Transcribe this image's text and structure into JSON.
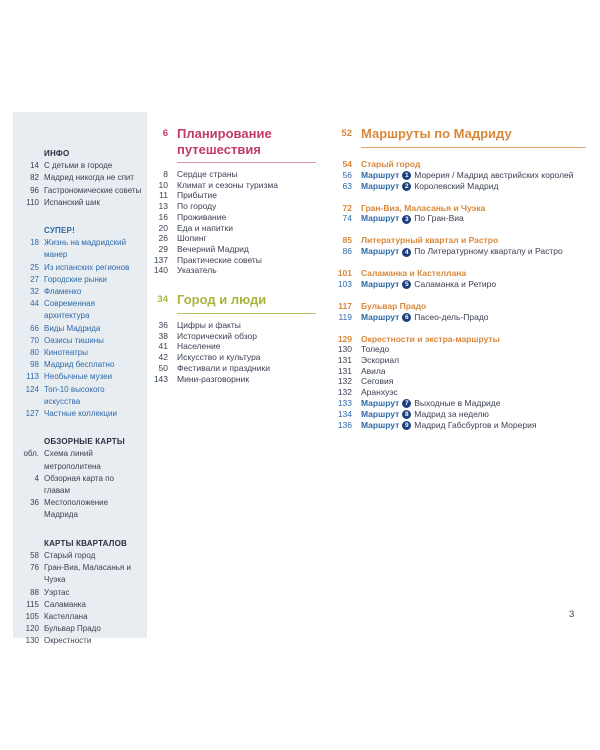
{
  "page_number": "3",
  "colors": {
    "sidebar_background": "#e8edf2",
    "text": "#3b4152",
    "blue_accent": "#2e6aa8",
    "magenta_heading": "#c23a6b",
    "green_heading": "#a9b53c",
    "orange_heading": "#d8883a",
    "route_badge": "#1c3f7d"
  },
  "sidebar": {
    "sections": [
      {
        "title": "ИНФО",
        "style": "dark",
        "items": [
          {
            "page": "14",
            "label": "С детьми в городе"
          },
          {
            "page": "82",
            "label": "Мадрид никогда не спит"
          },
          {
            "page": "96",
            "label": "Гастрономические советы"
          },
          {
            "page": "110",
            "label": "Испанский шик"
          }
        ]
      },
      {
        "title": "СУПЕР!",
        "style": "blue",
        "items": [
          {
            "page": "18",
            "label": "Жизнь на мадридский манер"
          },
          {
            "page": "25",
            "label": "Из испанских регионов"
          },
          {
            "page": "27",
            "label": "Городские рынки"
          },
          {
            "page": "32",
            "label": "Фламенко"
          },
          {
            "page": "44",
            "label": "Современная архитектура"
          },
          {
            "page": "66",
            "label": "Виды Мадрида"
          },
          {
            "page": "70",
            "label": "Оазисы тишины"
          },
          {
            "page": "80",
            "label": "Кинотеатры"
          },
          {
            "page": "98",
            "label": "Мадрид бесплатно"
          },
          {
            "page": "113",
            "label": "Необычные музеи"
          },
          {
            "page": "124",
            "label": "Топ-10 высокого искусства"
          },
          {
            "page": "127",
            "label": "Частные коллекции"
          }
        ]
      },
      {
        "title": "ОБЗОРНЫЕ КАРТЫ",
        "style": "dark",
        "items": [
          {
            "page": "обл.",
            "label": "Схема линий метрополитена"
          },
          {
            "page": "4",
            "label": "Обзорная карта по главам"
          },
          {
            "page": "36",
            "label": "Местоположение Мадрида"
          }
        ]
      },
      {
        "title": "КАРТЫ КВАРТАЛОВ",
        "style": "dark",
        "items": [
          {
            "page": "58",
            "label": "Старый город"
          },
          {
            "page": "76",
            "label": "Гран-Виа, Маласанья и Чуэка"
          },
          {
            "page": "88",
            "label": "Уэртас"
          },
          {
            "page": "115",
            "label": "Саламанка"
          },
          {
            "page": "105",
            "label": "Кастеллана"
          },
          {
            "page": "120",
            "label": "Бульвар Прадо"
          },
          {
            "page": "130",
            "label": "Окрестности"
          }
        ]
      }
    ]
  },
  "middle_column": {
    "sections": [
      {
        "page": "6",
        "title": "Планирование путешествия",
        "theme": "magenta",
        "entries": [
          {
            "page": "8",
            "label": "Сердце страны"
          },
          {
            "page": "10",
            "label": "Климат и сезоны туризма"
          },
          {
            "page": "11",
            "label": "Прибытие"
          },
          {
            "page": "13",
            "label": "По городу"
          },
          {
            "page": "16",
            "label": "Проживание"
          },
          {
            "page": "20",
            "label": "Еда и напитки"
          },
          {
            "page": "26",
            "label": "Шопинг"
          },
          {
            "page": "29",
            "label": "Вечерний Мадрид"
          },
          {
            "page": "137",
            "label": "Практические советы"
          },
          {
            "page": "140",
            "label": "Указатель"
          }
        ]
      },
      {
        "page": "34",
        "title": "Город и люди",
        "theme": "green",
        "entries": [
          {
            "page": "36",
            "label": "Цифры и факты"
          },
          {
            "page": "38",
            "label": "Исторический обзор"
          },
          {
            "page": "41",
            "label": "Население"
          },
          {
            "page": "42",
            "label": "Искусство и культура"
          },
          {
            "page": "50",
            "label": "Фестивали и праздники"
          },
          {
            "page": "143",
            "label": "Мини-разговорник"
          }
        ]
      }
    ]
  },
  "right_column": {
    "heading": {
      "page": "52",
      "title": "Маршруты по Мадриду"
    },
    "route_word": "Маршрут",
    "groups": [
      {
        "page": "54",
        "title": "Старый город",
        "entries": [
          {
            "page": "56",
            "route_number": "1",
            "label": "Морерия / Мадрид австрийских королей"
          },
          {
            "page": "63",
            "route_number": "2",
            "label": "Королевский Мадрид"
          }
        ]
      },
      {
        "page": "72",
        "title": "Гран-Виа, Маласанья и Чуэка",
        "entries": [
          {
            "page": "74",
            "route_number": "3",
            "label": "По Гран-Виа"
          }
        ]
      },
      {
        "page": "85",
        "title": "Литературный квартал и Растро",
        "entries": [
          {
            "page": "86",
            "route_number": "4",
            "label": "По Литературному кварталу и Растро"
          }
        ]
      },
      {
        "page": "101",
        "title": "Саламанка и Кастеллана",
        "entries": [
          {
            "page": "103",
            "route_number": "5",
            "label": "Саламанка и Ретиро"
          }
        ]
      },
      {
        "page": "117",
        "title": "Бульвар Прадо",
        "entries": [
          {
            "page": "119",
            "route_number": "6",
            "label": "Пасео-дель-Прадо"
          }
        ]
      },
      {
        "page": "129",
        "title": "Окрестности и экстра-маршруты",
        "entries": [
          {
            "page": "130",
            "label": "Толедо"
          },
          {
            "page": "131",
            "label": "Эскориал"
          },
          {
            "page": "131",
            "label": "Авила"
          },
          {
            "page": "132",
            "label": "Сеговия"
          },
          {
            "page": "132",
            "label": "Аранхуэс"
          },
          {
            "page": "133",
            "route_number": "7",
            "label": "Выходные в Мадриде"
          },
          {
            "page": "134",
            "route_number": "8",
            "label": "Мадрид за неделю"
          },
          {
            "page": "136",
            "route_number": "9",
            "label": "Мадрид Габсбургов и Морерия"
          }
        ]
      }
    ]
  }
}
